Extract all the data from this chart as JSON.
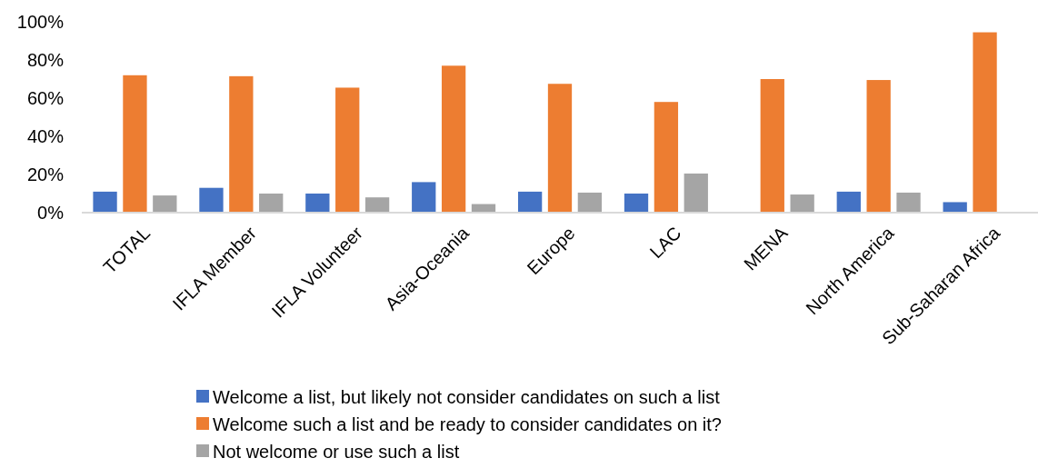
{
  "chart_data": {
    "type": "bar",
    "categories": [
      "TOTAL",
      "IFLA Member",
      "IFLA Volunteer",
      "Asia-Oceania",
      "Europe",
      "LAC",
      "MENA",
      "North America",
      "Sub-Saharan Africa"
    ],
    "series": [
      {
        "name": "Welcome a list, but likely not consider candidates on such a list",
        "color": "#4472c4",
        "values": [
          11,
          13,
          10,
          16,
          11,
          10,
          0,
          11,
          5.5
        ]
      },
      {
        "name": "Welcome such a list and be ready to consider candidates on it?",
        "color": "#ed7d31",
        "values": [
          72,
          71.5,
          65.5,
          77,
          67.5,
          58,
          70,
          69.5,
          94.5
        ]
      },
      {
        "name": "Not welcome or use such a list",
        "color": "#a5a5a5",
        "values": [
          9,
          10,
          8,
          4.5,
          10.5,
          20.5,
          9.5,
          10.5,
          0
        ]
      }
    ],
    "ylim": [
      0,
      100
    ],
    "yticks": [
      {
        "value": 0,
        "label": "0%"
      },
      {
        "value": 20,
        "label": "20%"
      },
      {
        "value": 40,
        "label": "40%"
      },
      {
        "value": 60,
        "label": "60%"
      },
      {
        "value": 80,
        "label": "80%"
      },
      {
        "value": 100,
        "label": "100%"
      }
    ],
    "grid": false,
    "legend": "bottom"
  }
}
